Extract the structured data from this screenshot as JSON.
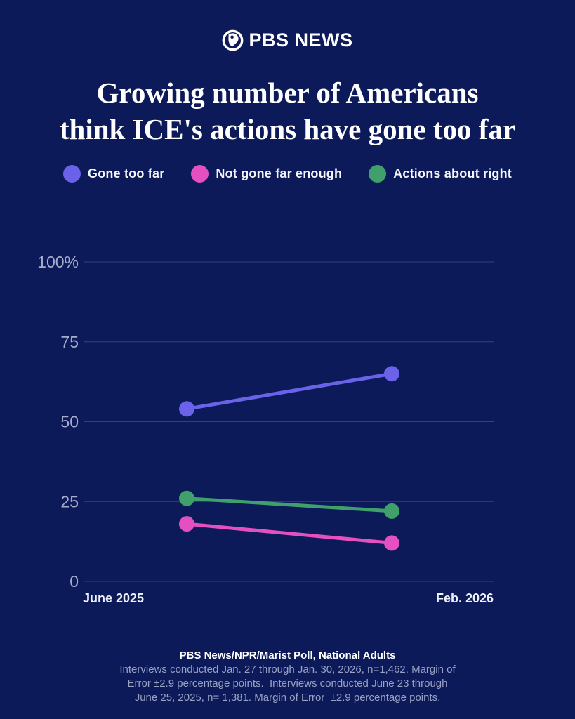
{
  "brand": {
    "logo_text": "PBS NEWS"
  },
  "title": {
    "line1": "Growing number of Americans",
    "line2": "think ICE's actions have gone too far"
  },
  "legend": {
    "items": [
      {
        "label": "Gone too far",
        "color": "#6a62e8"
      },
      {
        "label": "Not gone far enough",
        "color": "#e550c0"
      },
      {
        "label": "Actions about right",
        "color": "#3fa06b"
      }
    ]
  },
  "chart_data": {
    "type": "line",
    "x": [
      "June 2025",
      "Feb. 2026"
    ],
    "series": [
      {
        "name": "Gone too far",
        "color": "#6a62e8",
        "values": [
          54,
          65
        ]
      },
      {
        "name": "Actions about right",
        "color": "#3fa06b",
        "values": [
          26,
          22
        ]
      },
      {
        "name": "Not gone far enough",
        "color": "#e550c0",
        "values": [
          18,
          12
        ]
      }
    ],
    "ylim": [
      0,
      100
    ],
    "yticks": [
      100,
      75,
      50,
      25,
      0
    ],
    "ytick_labels": [
      "100%",
      "75",
      "50",
      "25",
      "0"
    ],
    "grid": "horizontal",
    "legend_position": "top"
  },
  "footer": {
    "source": "PBS News/NPR/Marist Poll, National Adults",
    "lines": [
      "Interviews conducted Jan. 27 through Jan. 30, 2026, n=1,462. Margin of",
      "Error ±2.9 percentage points.  Interviews conducted June 23 through",
      "June 25, 2025, n= 1,381. Margin of Error  ±2.9 percentage points."
    ]
  },
  "colors": {
    "background": "#0c1a5a",
    "grid_line": "#5a6188",
    "axis_tick_label": "#a7accb",
    "x_axis_label": "#eef0f8",
    "footer_text": "#99a1c3",
    "white": "#ffffff"
  }
}
